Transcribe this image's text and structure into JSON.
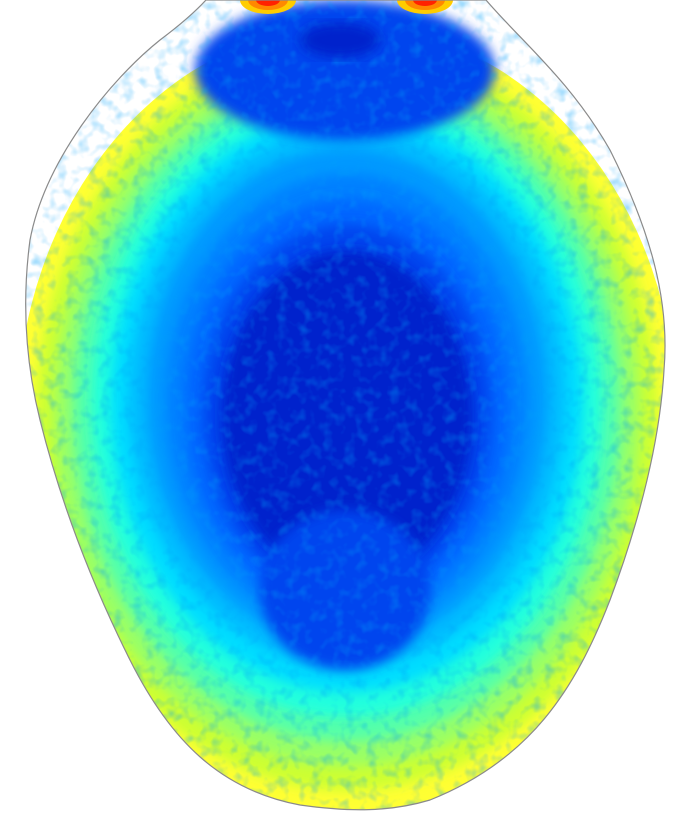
{
  "image": {
    "kind": "filled-contour-field",
    "colormap": "jet",
    "background_color": "#ffffff",
    "outline_color": "#8a8a8a",
    "bands": [
      {
        "level": 0,
        "color": "#ffff33"
      },
      {
        "level": 1,
        "color": "#ccff33"
      },
      {
        "level": 2,
        "color": "#99ff66"
      },
      {
        "level": 3,
        "color": "#55ffaa"
      },
      {
        "level": 4,
        "color": "#22ffdd"
      },
      {
        "level": 5,
        "color": "#00ddff"
      },
      {
        "level": 6,
        "color": "#00bbff"
      },
      {
        "level": 7,
        "color": "#0099ff"
      },
      {
        "level": 8,
        "color": "#0080ff"
      },
      {
        "level": 9,
        "color": "#0066ff"
      },
      {
        "level": 10,
        "color": "#0044ee"
      },
      {
        "level": 11,
        "color": "#0022cc"
      }
    ],
    "hotspot_colors": [
      "#ff2200",
      "#ff8800",
      "#ffcc00"
    ]
  }
}
